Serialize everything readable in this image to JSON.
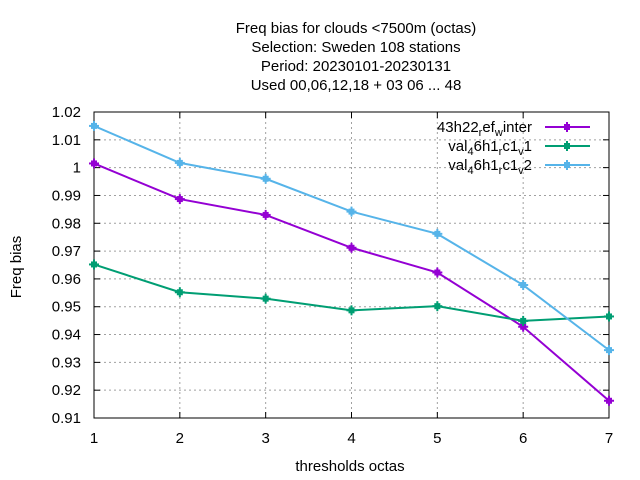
{
  "chart_data": {
    "type": "line",
    "title": [
      "Freq bias  for clouds <7500m (octas)",
      "Selection: Sweden    108 stations",
      "Period: 20230101-20230131",
      "Used  00,06,12,18  + 03 06 ... 48"
    ],
    "xlabel": "thresholds octas",
    "ylabel": "Freq bias",
    "x": [
      1,
      2,
      3,
      4,
      5,
      6,
      7
    ],
    "xlim": [
      1,
      7
    ],
    "ylim": [
      0.91,
      1.02
    ],
    "xticks": [
      "1",
      "2",
      "3",
      "4",
      "5",
      "6",
      "7"
    ],
    "yticks": [
      "0.91",
      "0.92",
      "0.93",
      "0.94",
      "0.95",
      "0.96",
      "0.97",
      "0.98",
      "0.99",
      "1",
      "1.01",
      "1.02"
    ],
    "grid": true,
    "legend_position": "top-right",
    "series": [
      {
        "name": "43h22_ref_winter",
        "label_parts": [
          [
            "43h22",
            "n"
          ],
          [
            "r",
            "sub"
          ],
          [
            "ef",
            "n"
          ],
          [
            "w",
            "sub"
          ],
          [
            "inter",
            "n"
          ]
        ],
        "color": "#9400d3",
        "values": [
          1.0015,
          0.9887,
          0.983,
          0.9712,
          0.9623,
          0.9428,
          0.9162
        ]
      },
      {
        "name": "val_46h1_rc1_v1",
        "label_parts": [
          [
            "val",
            "n"
          ],
          [
            "4",
            "sub"
          ],
          [
            "6h1",
            "n"
          ],
          [
            "r",
            "sub"
          ],
          [
            "c1",
            "n"
          ],
          [
            "v",
            "sub"
          ],
          [
            "1",
            "n"
          ]
        ],
        "color": "#009e73",
        "values": [
          0.9652,
          0.9552,
          0.9529,
          0.9487,
          0.9502,
          0.9449,
          0.9465
        ]
      },
      {
        "name": "val_46h1_rc1_v2",
        "label_parts": [
          [
            "val",
            "n"
          ],
          [
            "4",
            "sub"
          ],
          [
            "6h1",
            "n"
          ],
          [
            "r",
            "sub"
          ],
          [
            "c1",
            "n"
          ],
          [
            "v",
            "sub"
          ],
          [
            "2",
            "n"
          ]
        ],
        "color": "#56b4e9",
        "values": [
          1.015,
          1.0017,
          0.996,
          0.9842,
          0.9762,
          0.9578,
          0.9344
        ]
      }
    ]
  }
}
